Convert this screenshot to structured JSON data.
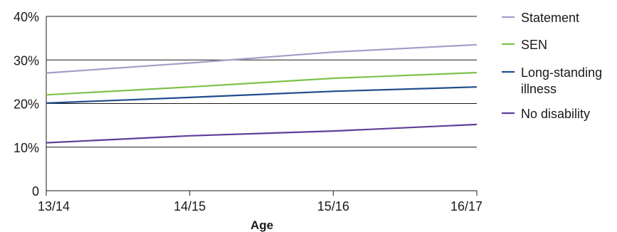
{
  "chart_data": {
    "type": "line",
    "title": "",
    "xlabel": "Age",
    "ylabel": "",
    "categories": [
      "13/14",
      "14/15",
      "15/16",
      "16/17"
    ],
    "ylim": [
      0,
      40
    ],
    "yticks": [
      0,
      10,
      20,
      30,
      40
    ],
    "ytick_labels": [
      "0",
      "10%",
      "20%",
      "30%",
      "40%"
    ],
    "grid": true,
    "legend_position": "right",
    "series": [
      {
        "name": "Statement",
        "label_lines": [
          "Statement"
        ],
        "color": "#a99ac9",
        "values": [
          27,
          29.3,
          31.8,
          33.5
        ]
      },
      {
        "name": "SEN",
        "label_lines": [
          "SEN"
        ],
        "color": "#7dc24a",
        "values": [
          22,
          23.8,
          25.8,
          27.1
        ]
      },
      {
        "name": "Long-standing illness",
        "label_lines": [
          "Long-standing",
          "illness"
        ],
        "color": "#1f4e8c",
        "values": [
          20.1,
          21.4,
          22.8,
          23.8
        ]
      },
      {
        "name": "No disability",
        "label_lines": [
          "No disability"
        ],
        "color": "#5e3f97",
        "values": [
          11,
          12.6,
          13.7,
          15.2
        ]
      }
    ]
  }
}
